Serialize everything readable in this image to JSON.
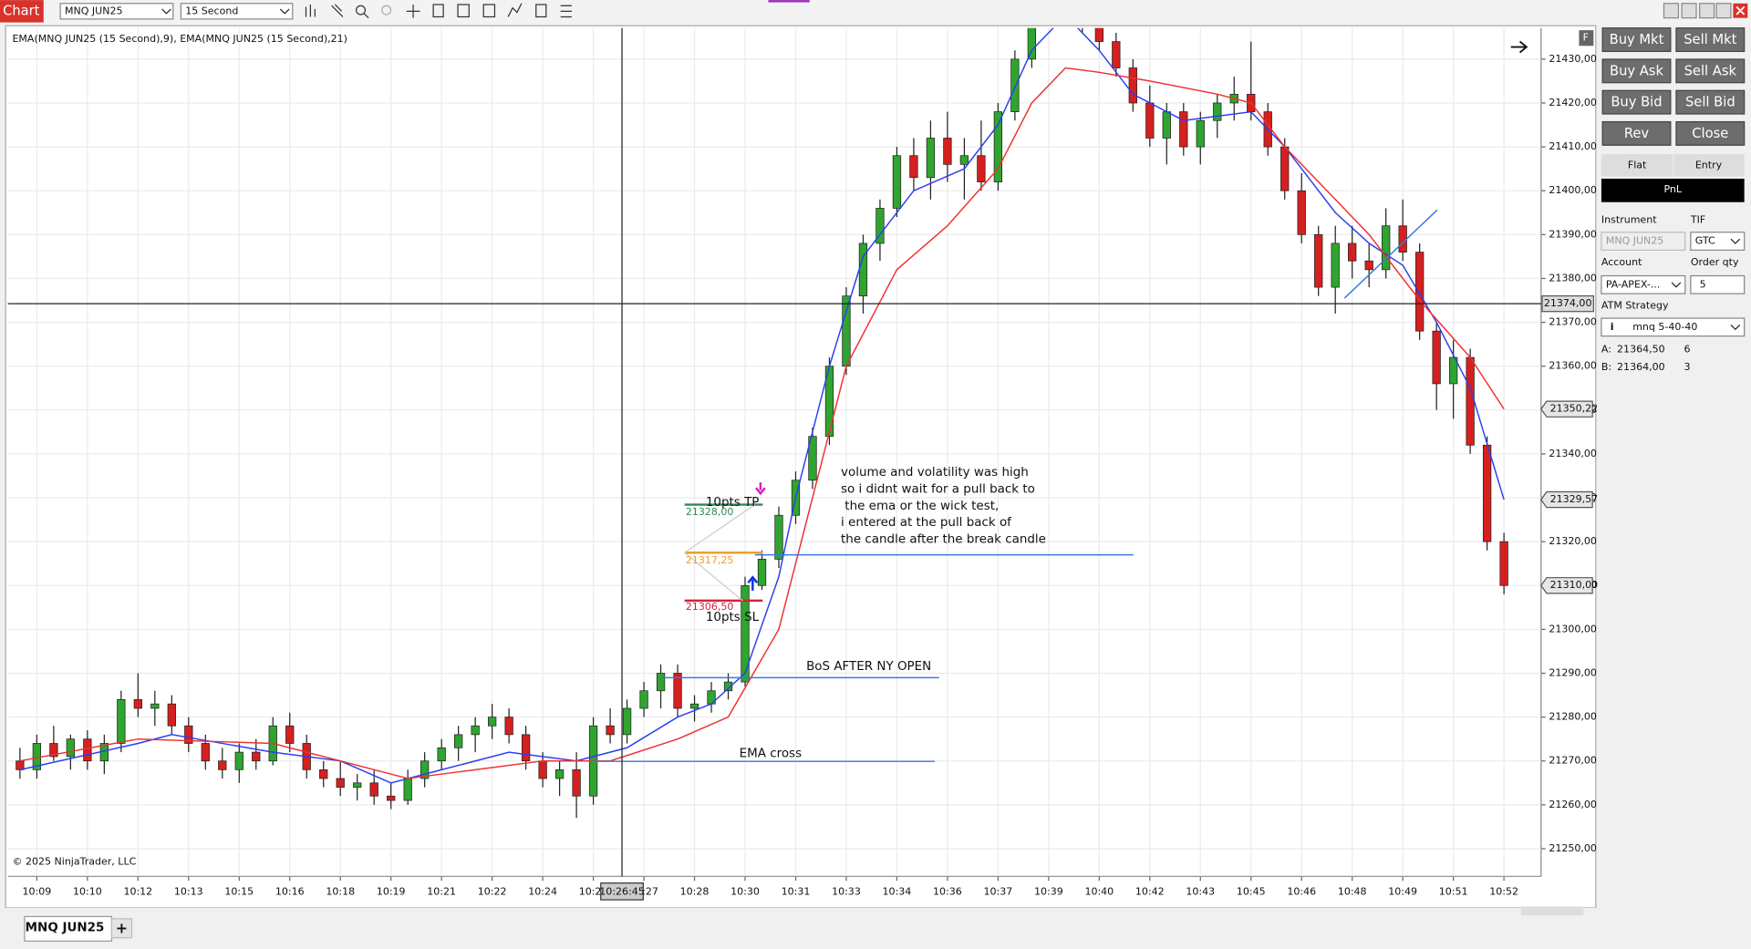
{
  "toolbar": {
    "tab": "Chart",
    "instrument": "MNQ JUN25",
    "interval": "15 Second"
  },
  "chart_data": {
    "type": "candlestick",
    "legend_text": "EMA(MNQ JUN25 (15 Second),9), EMA(MNQ JUN25 (15 Second),21)",
    "copyright": "© 2025 NinjaTrader, LLC",
    "ohlc": [
      [
        21270,
        21273,
        21266,
        21268
      ],
      [
        21268,
        21276,
        21266,
        21274
      ],
      [
        21274,
        21278,
        21270,
        21271
      ],
      [
        21271,
        21276,
        21268,
        21275
      ],
      [
        21275,
        21277,
        21268,
        21270
      ],
      [
        21270,
        21276,
        21267,
        21274
      ],
      [
        21274,
        21286,
        21272,
        21284
      ],
      [
        21284,
        21290,
        21280,
        21282
      ],
      [
        21282,
        21286,
        21278,
        21283
      ],
      [
        21283,
        21285,
        21276,
        21278
      ],
      [
        21278,
        21280,
        21272,
        21274
      ],
      [
        21274,
        21276,
        21268,
        21270
      ],
      [
        21270,
        21273,
        21266,
        21268
      ],
      [
        21268,
        21274,
        21265,
        21272
      ],
      [
        21272,
        21275,
        21268,
        21270
      ],
      [
        21270,
        21280,
        21269,
        21278
      ],
      [
        21278,
        21281,
        21272,
        21274
      ],
      [
        21274,
        21276,
        21266,
        21268
      ],
      [
        21268,
        21270,
        21264,
        21266
      ],
      [
        21266,
        21270,
        21262,
        21264
      ],
      [
        21264,
        21267,
        21261,
        21265
      ],
      [
        21265,
        21268,
        21260,
        21262
      ],
      [
        21262,
        21265,
        21259,
        21261
      ],
      [
        21261,
        21268,
        21260,
        21266
      ],
      [
        21266,
        21272,
        21264,
        21270
      ],
      [
        21270,
        21275,
        21268,
        21273
      ],
      [
        21273,
        21278,
        21270,
        21276
      ],
      [
        21276,
        21280,
        21272,
        21278
      ],
      [
        21278,
        21283,
        21275,
        21280
      ],
      [
        21280,
        21282,
        21274,
        21276
      ],
      [
        21276,
        21278,
        21268,
        21270
      ],
      [
        21270,
        21272,
        21264,
        21266
      ],
      [
        21266,
        21270,
        21262,
        21268
      ],
      [
        21268,
        21272,
        21257,
        21262
      ],
      [
        21262,
        21280,
        21260,
        21278
      ],
      [
        21278,
        21282,
        21274,
        21276
      ],
      [
        21276,
        21284,
        21274,
        21282
      ],
      [
        21282,
        21288,
        21280,
        21286
      ],
      [
        21286,
        21292,
        21282,
        21290
      ],
      [
        21290,
        21292,
        21280,
        21282
      ],
      [
        21282,
        21285,
        21279,
        21283
      ],
      [
        21283,
        21288,
        21281,
        21286
      ],
      [
        21286,
        21290,
        21284,
        21288
      ],
      [
        21288,
        21312,
        21287,
        21310
      ],
      [
        21310,
        21318,
        21309,
        21316
      ],
      [
        21316,
        21328,
        21314,
        21326
      ],
      [
        21326,
        21336,
        21324,
        21334
      ],
      [
        21334,
        21346,
        21332,
        21344
      ],
      [
        21344,
        21362,
        21342,
        21360
      ],
      [
        21360,
        21378,
        21358,
        21376
      ],
      [
        21376,
        21390,
        21372,
        21388
      ],
      [
        21388,
        21398,
        21384,
        21396
      ],
      [
        21396,
        21410,
        21394,
        21408
      ],
      [
        21408,
        21412,
        21400,
        21403
      ],
      [
        21403,
        21416,
        21398,
        21412
      ],
      [
        21412,
        21418,
        21402,
        21406
      ],
      [
        21406,
        21412,
        21398,
        21408
      ],
      [
        21408,
        21416,
        21400,
        21402
      ],
      [
        21402,
        21420,
        21400,
        21418
      ],
      [
        21418,
        21432,
        21416,
        21430
      ],
      [
        21430,
        21445,
        21428,
        21442
      ],
      [
        21442,
        21450,
        21438,
        21446
      ],
      [
        21446,
        21452,
        21440,
        21444
      ],
      [
        21444,
        21448,
        21436,
        21438
      ],
      [
        21438,
        21440,
        21432,
        21434
      ],
      [
        21434,
        21436,
        21426,
        21428
      ],
      [
        21428,
        21430,
        21418,
        21420
      ],
      [
        21420,
        21424,
        21410,
        21412
      ],
      [
        21412,
        21420,
        21406,
        21418
      ],
      [
        21418,
        21420,
        21408,
        21410
      ],
      [
        21410,
        21418,
        21406,
        21416
      ],
      [
        21416,
        21422,
        21412,
        21420
      ],
      [
        21420,
        21426,
        21416,
        21422
      ],
      [
        21422,
        21434,
        21416,
        21418
      ],
      [
        21418,
        21420,
        21408,
        21410
      ],
      [
        21410,
        21412,
        21398,
        21400
      ],
      [
        21400,
        21404,
        21388,
        21390
      ],
      [
        21390,
        21392,
        21376,
        21378
      ],
      [
        21378,
        21392,
        21372,
        21388
      ],
      [
        21388,
        21392,
        21380,
        21384
      ],
      [
        21384,
        21388,
        21378,
        21382
      ],
      [
        21382,
        21396,
        21380,
        21392
      ],
      [
        21392,
        21398,
        21384,
        21386
      ],
      [
        21386,
        21388,
        21366,
        21368
      ],
      [
        21368,
        21370,
        21350,
        21356
      ],
      [
        21356,
        21366,
        21348,
        21362
      ],
      [
        21362,
        21364,
        21340,
        21342
      ],
      [
        21342,
        21344,
        21318,
        21320
      ],
      [
        21320,
        21322,
        21308,
        21310
      ]
    ],
    "up_color": "#2fa52f",
    "down_color": "#d61f1f",
    "series": [
      {
        "color": "#2b3ff0",
        "x": [
          0,
          7,
          9,
          15,
          19,
          22,
          25,
          29,
          33,
          36,
          39,
          41,
          43,
          45,
          46,
          48,
          50,
          53,
          56,
          58,
          60,
          62,
          64,
          66,
          69,
          73,
          75,
          78,
          80,
          82,
          84,
          86,
          88
        ],
        "values": [
          21268,
          21274,
          21276,
          21272,
          21270,
          21265,
          21268,
          21272,
          21270,
          21273,
          21280,
          21283,
          21290,
          21312,
          21330,
          21360,
          21385,
          21400,
          21405,
          21415,
          21432,
          21440,
          21432,
          21422,
          21416,
          21418,
          21410,
          21395,
          21388,
          21383,
          21370,
          21355,
          21329.57
        ]
      },
      {
        "color": "#f03030",
        "x": [
          0,
          7,
          15,
          19,
          23,
          27,
          31,
          35,
          39,
          42,
          45,
          47,
          49,
          52,
          55,
          58,
          60,
          62,
          64,
          67,
          71,
          73,
          75,
          78,
          80,
          81,
          83,
          86,
          88
        ],
        "values": [
          21270,
          21275,
          21274,
          21270,
          21266,
          21268,
          21270,
          21270,
          21275,
          21280,
          21300,
          21330,
          21360,
          21382,
          21392,
          21405,
          21420,
          21428,
          21427,
          21425,
          21422,
          21420,
          21410,
          21398,
          21390,
          21385,
          21375,
          21362,
          21350.22
        ]
      }
    ],
    "xlim": [
      -0.72,
      90.2
    ],
    "ylim": [
      21244.2,
      21437.1
    ],
    "grid": true,
    "yticks": [
      {
        "value": 21250,
        "label": "21250,00"
      },
      {
        "value": 21260,
        "label": "21260,00"
      },
      {
        "value": 21270,
        "label": "21270,00"
      },
      {
        "value": 21280,
        "label": "21280,00"
      },
      {
        "value": 21290,
        "label": "21290,00"
      },
      {
        "value": 21300,
        "label": "21300,00"
      },
      {
        "value": 21310,
        "label": "21310,00"
      },
      {
        "value": 21320,
        "label": "21320,00"
      },
      {
        "value": 21330,
        "label": "21330,00"
      },
      {
        "value": 21340,
        "label": "21340,00"
      },
      {
        "value": 21350,
        "label": "21350,00"
      },
      {
        "value": 21360,
        "label": "21360,00"
      },
      {
        "value": 21370,
        "label": "21370,00"
      },
      {
        "value": 21380,
        "label": "21380,00"
      },
      {
        "value": 21390,
        "label": "21390,00"
      },
      {
        "value": 21400,
        "label": "21400,00"
      },
      {
        "value": 21410,
        "label": "21410,00"
      },
      {
        "value": 21420,
        "label": "21420,00"
      },
      {
        "value": 21430,
        "label": "21430,00"
      }
    ],
    "xticks": [
      {
        "value": 1,
        "label": "10:09"
      },
      {
        "value": 4,
        "label": "10:10"
      },
      {
        "value": 7,
        "label": "10:12"
      },
      {
        "value": 10,
        "label": "10:13"
      },
      {
        "value": 13,
        "label": "10:15"
      },
      {
        "value": 16,
        "label": "10:16"
      },
      {
        "value": 19,
        "label": "10:18"
      },
      {
        "value": 22,
        "label": "10:19"
      },
      {
        "value": 25,
        "label": "10:21"
      },
      {
        "value": 28,
        "label": "10:22"
      },
      {
        "value": 31,
        "label": "10:24"
      },
      {
        "value": 34,
        "label": "10:25"
      },
      {
        "value": 37,
        "label": "10:27"
      },
      {
        "value": 40,
        "label": "10:28"
      },
      {
        "value": 43,
        "label": "10:30"
      },
      {
        "value": 46,
        "label": "10:31"
      },
      {
        "value": 49,
        "label": "10:33"
      },
      {
        "value": 52,
        "label": "10:34"
      },
      {
        "value": 55,
        "label": "10:36"
      },
      {
        "value": 58,
        "label": "10:37"
      },
      {
        "value": 61,
        "label": "10:39"
      },
      {
        "value": 64,
        "label": "10:40"
      },
      {
        "value": 67,
        "label": "10:42"
      },
      {
        "value": 70,
        "label": "10:43"
      },
      {
        "value": 73,
        "label": "10:45"
      },
      {
        "value": 76,
        "label": "10:46"
      },
      {
        "value": 79,
        "label": "10:48"
      },
      {
        "value": 82,
        "label": "10:49"
      },
      {
        "value": 85,
        "label": "10:51"
      },
      {
        "value": 88,
        "label": "10:52"
      }
    ],
    "price_markers": [
      {
        "value": 21350.22,
        "label": "21350,22"
      },
      {
        "value": 21329.57,
        "label": "21329,57"
      },
      {
        "value": 21310,
        "label": "21310,00"
      }
    ],
    "crosshair": {
      "price_label": "21374,00",
      "time_label": "10:26:45"
    },
    "annotations": {
      "note": [
        "volume and volatility was high",
        "so i didnt wait for a pull back to",
        " the ema or the wick test,",
        "i entered at the pull back of",
        "the candle after the break candle"
      ],
      "bos": "BoS AFTER NY OPEN",
      "ema_cross": "EMA cross"
    },
    "orders": {
      "tp_name": "10pts TP",
      "tp_label": "21328,00",
      "entry_label": "21317,25",
      "sl_label": "21306,50",
      "sl_name": "10pts SL"
    }
  },
  "tabs": {
    "active": "MNQ JUN25",
    "add": "+"
  },
  "order_panel": {
    "buttons": [
      "Buy Mkt",
      "Sell Mkt",
      "Buy Ask",
      "Sell Ask",
      "Buy Bid",
      "Sell Bid",
      "Rev",
      "Close"
    ],
    "tabs": [
      "Flat",
      "Entry"
    ],
    "pnl": "PnL",
    "instrument_label": "Instrument",
    "tif_label": "TIF",
    "instrument": "MNQ JUN25",
    "tif": "GTC",
    "account_label": "Account",
    "qty_label": "Order qty",
    "account": "PA-APEX-...",
    "qty": "5",
    "atm_label": "ATM Strategy",
    "atm_icon": "i",
    "atm": "mnq 5-40-40",
    "ask_prefix": "A:",
    "ask": "21364,50",
    "ask_size": "6",
    "bid_prefix": "B:",
    "bid": "21364,00",
    "bid_size": "3"
  }
}
